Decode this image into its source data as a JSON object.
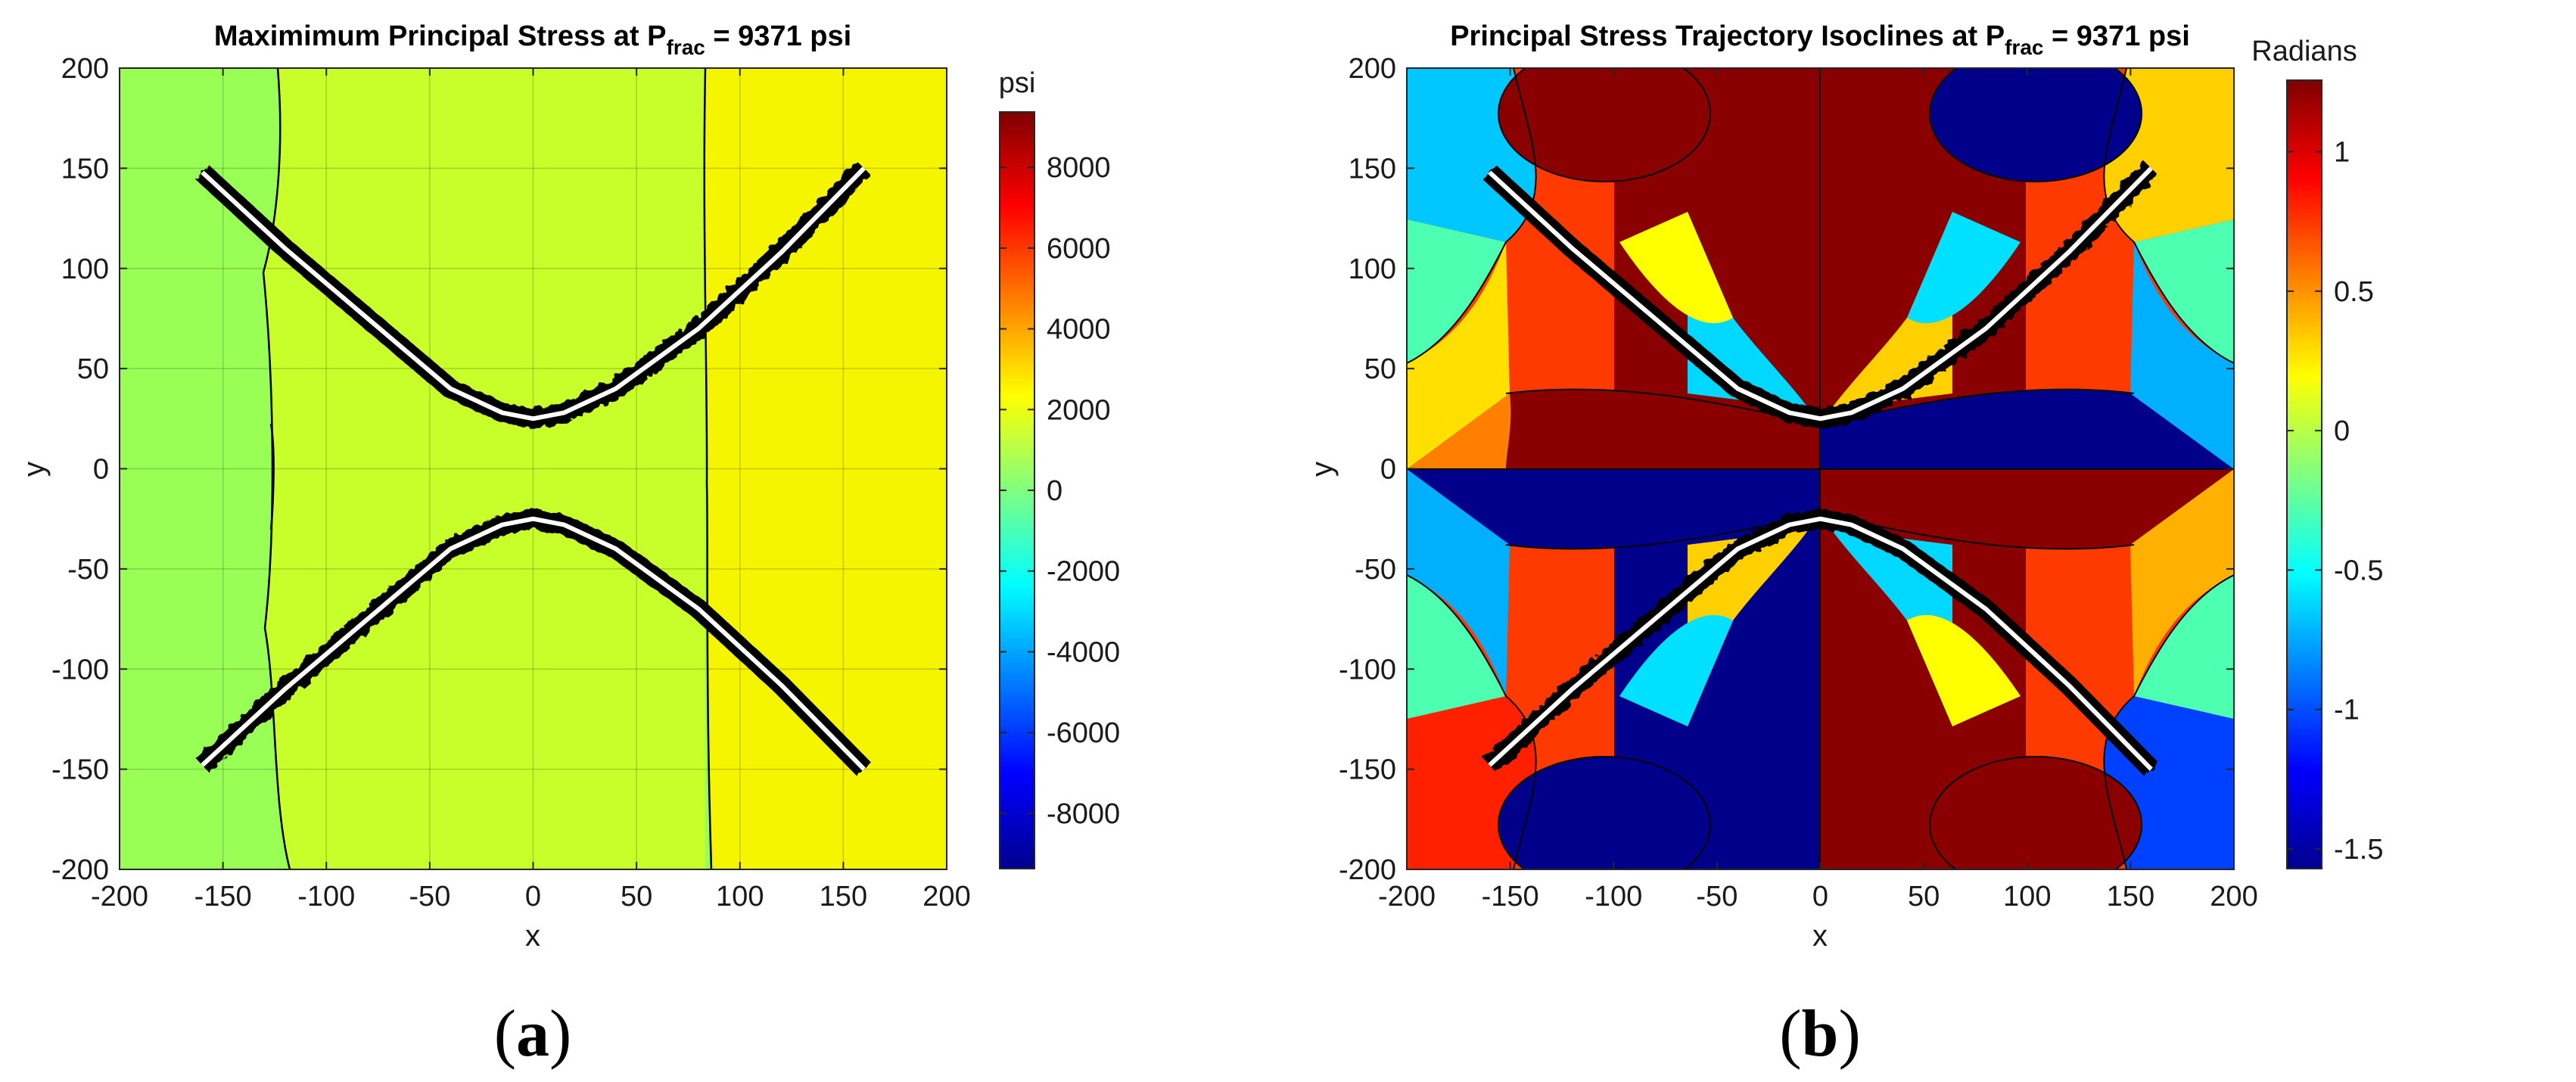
{
  "chart_data": [
    {
      "type": "heatmap",
      "panel_label": {
        "open": "(",
        "letter": "a",
        "close": ")"
      },
      "title": {
        "main": "Maximimum Principal Stress at P",
        "sub": "frac",
        "tail": " = 9371 psi"
      },
      "xlabel": "x",
      "ylabel": "y",
      "xlim": [
        -200,
        200
      ],
      "ylim": [
        -200,
        200
      ],
      "x_ticks": [
        -200,
        -150,
        -100,
        -50,
        0,
        50,
        100,
        150,
        200
      ],
      "y_ticks": [
        200,
        150,
        100,
        50,
        0,
        -50,
        -100,
        -150,
        -200
      ],
      "grid": true,
      "colorbar": {
        "label": "psi",
        "range": [
          -9371,
          9371
        ],
        "ticks": [
          8000,
          6000,
          4000,
          2000,
          0,
          -2000,
          -4000,
          -6000,
          -8000
        ],
        "colormap": "jet"
      },
      "regions": [
        {
          "name": "far-left band",
          "x_range": [
            -200,
            -150
          ],
          "color": "#99ff55"
        },
        {
          "name": "left band",
          "x_range": [
            -150,
            -5
          ],
          "color": "#c8ff2a"
        },
        {
          "name": "centre band",
          "x_range": [
            -5,
            130
          ],
          "color": "#f5f500"
        },
        {
          "name": "right band",
          "x_range": [
            130,
            200
          ],
          "color": "#ffb000"
        }
      ],
      "fractures": [
        {
          "name": "upper fracture",
          "path": [
            [
              -160,
              148
            ],
            [
              -120,
              110
            ],
            [
              -80,
              75
            ],
            [
              -40,
              40
            ],
            [
              -15,
              28
            ],
            [
              0,
              25
            ],
            [
              15,
              28
            ],
            [
              40,
              40
            ],
            [
              80,
              70
            ],
            [
              120,
              108
            ],
            [
              160,
              150
            ]
          ]
        },
        {
          "name": "lower fracture",
          "path": [
            [
              -160,
              -148
            ],
            [
              -120,
              -110
            ],
            [
              -80,
              -75
            ],
            [
              -40,
              -40
            ],
            [
              -15,
              -28
            ],
            [
              0,
              -25
            ],
            [
              15,
              -28
            ],
            [
              40,
              -40
            ],
            [
              80,
              -70
            ],
            [
              120,
              -108
            ],
            [
              160,
              -150
            ]
          ]
        }
      ]
    },
    {
      "type": "heatmap",
      "panel_label": {
        "open": "(",
        "letter": "b",
        "close": ")"
      },
      "title": {
        "main": "Principal Stress Trajectory Isoclines at P",
        "sub": "frac",
        "tail": " = 9371 psi"
      },
      "xlabel": "x",
      "ylabel": "y",
      "xlim": [
        -200,
        200
      ],
      "ylim": [
        -200,
        200
      ],
      "x_ticks": [
        -200,
        -150,
        -100,
        -50,
        0,
        50,
        100,
        150,
        200
      ],
      "y_ticks": [
        200,
        150,
        100,
        50,
        0,
        -50,
        -100,
        -150,
        -200
      ],
      "grid": false,
      "colorbar": {
        "label": "Radians",
        "range": [
          -1.5708,
          1.2566
        ],
        "ticks": [
          1,
          0.5,
          0,
          -0.5,
          -1,
          -1.5
        ],
        "colormap": "jet"
      },
      "fractures": [
        {
          "name": "upper fracture",
          "path": [
            [
              -160,
              148
            ],
            [
              -120,
              110
            ],
            [
              -80,
              75
            ],
            [
              -40,
              40
            ],
            [
              -15,
              28
            ],
            [
              0,
              25
            ],
            [
              15,
              28
            ],
            [
              40,
              40
            ],
            [
              80,
              70
            ],
            [
              120,
              108
            ],
            [
              160,
              150
            ]
          ]
        },
        {
          "name": "lower fracture",
          "path": [
            [
              -160,
              -148
            ],
            [
              -120,
              -110
            ],
            [
              -80,
              -75
            ],
            [
              -40,
              -40
            ],
            [
              -15,
              -28
            ],
            [
              0,
              -25
            ],
            [
              15,
              -28
            ],
            [
              40,
              -40
            ],
            [
              80,
              -70
            ],
            [
              120,
              -108
            ],
            [
              160,
              -150
            ]
          ]
        }
      ],
      "quadrant_fill": {
        "dark_red": [
          [
            -200,
            0,
            0,
            200
          ],
          [
            0,
            200,
            0,
            200
          ]
        ],
        "dark_blue": [
          [
            -200,
            0,
            -200,
            0
          ]
        ]
      }
    }
  ]
}
